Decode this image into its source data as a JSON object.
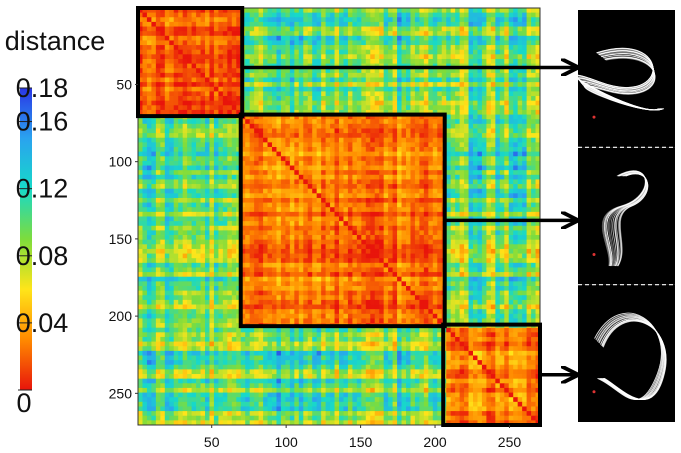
{
  "chart_data": {
    "type": "heatmap",
    "title": "",
    "xlabel": "",
    "ylabel": "",
    "n": 270,
    "xlim": [
      1,
      270
    ],
    "ylim": [
      1,
      270
    ],
    "x_ticks": [
      50,
      100,
      150,
      200,
      250
    ],
    "y_ticks": [
      50,
      100,
      150,
      200,
      250
    ],
    "colorbar": {
      "title": "distance",
      "min": 0,
      "max": 0.18,
      "ticks": [
        "0",
        "0.04",
        "0.08",
        "0.12",
        "0.16",
        "0.18"
      ],
      "ticks_numeric": [
        0,
        0.04,
        0.08,
        0.12,
        0.16,
        0.18
      ],
      "colors": [
        "#e8140b",
        "#ff8a00",
        "#ffe51a",
        "#7ddc3c",
        "#17d9c9",
        "#2aa3ef",
        "#2a36e6"
      ]
    },
    "clusters": [
      {
        "start": 1,
        "end": 70,
        "mean_distance_within": 0.02,
        "thumbnail": "fiber-bundle-cluster-1"
      },
      {
        "start": 70,
        "end": 206,
        "mean_distance_within": 0.025,
        "thumbnail": "fiber-bundle-cluster-2"
      },
      {
        "start": 206,
        "end": 270,
        "mean_distance_within": 0.03,
        "thumbnail": "fiber-bundle-cluster-3"
      }
    ],
    "mean_distance_between_clusters": 0.1,
    "legend_position": "left"
  }
}
